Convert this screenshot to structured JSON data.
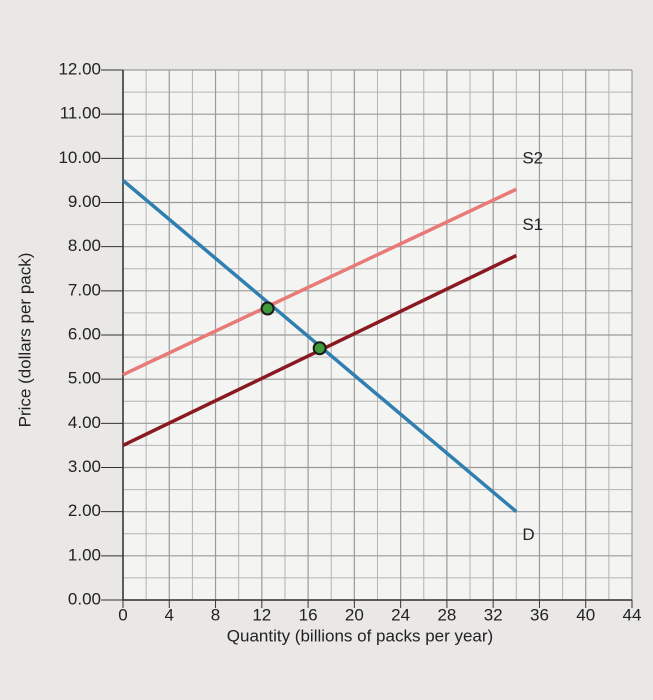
{
  "chart_data": {
    "type": "line",
    "xlabel": "Quantity (billions of packs per year)",
    "ylabel": "Price (dollars per pack)",
    "xlim": [
      0,
      44
    ],
    "ylim": [
      0,
      12
    ],
    "xticks": [
      0,
      4,
      8,
      12,
      16,
      20,
      24,
      28,
      32,
      36,
      40,
      44
    ],
    "yticks": [
      {
        "value": 0,
        "label": "0.00"
      },
      {
        "value": 1,
        "label": "1.00"
      },
      {
        "value": 2,
        "label": "2.00"
      },
      {
        "value": 3,
        "label": "3.00"
      },
      {
        "value": 4,
        "label": "4.00"
      },
      {
        "value": 5,
        "label": "5.00"
      },
      {
        "value": 6,
        "label": "6.00"
      },
      {
        "value": 7,
        "label": "7.00"
      },
      {
        "value": 8,
        "label": "8.00"
      },
      {
        "value": 9,
        "label": "9.00"
      },
      {
        "value": 10,
        "label": "10.00"
      },
      {
        "value": 11,
        "label": "11.00"
      },
      {
        "value": 12,
        "label": "12.00"
      }
    ],
    "grid": true,
    "series": [
      {
        "name": "S2",
        "color": "#e87a78",
        "x": [
          0,
          34
        ],
        "values": [
          5.1,
          9.3
        ]
      },
      {
        "name": "S1",
        "color": "#8a1a22",
        "x": [
          0,
          34
        ],
        "values": [
          3.5,
          7.8
        ]
      },
      {
        "name": "D",
        "color": "#2f7fb0",
        "x": [
          0,
          34
        ],
        "values": [
          9.5,
          2.0
        ]
      }
    ],
    "points": {
      "color": "#3f9a3a",
      "x": [
        12.5,
        17
      ],
      "values": [
        6.6,
        5.7
      ]
    }
  }
}
